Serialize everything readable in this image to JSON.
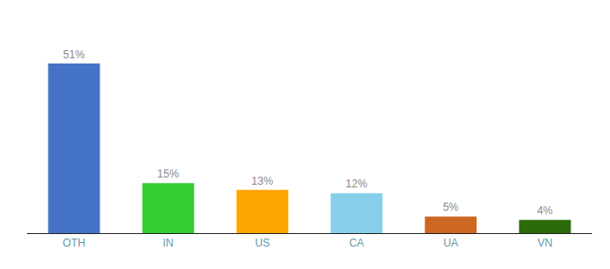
{
  "chart_data": {
    "type": "bar",
    "categories": [
      "OTH",
      "IN",
      "US",
      "CA",
      "UA",
      "VN"
    ],
    "values": [
      51,
      15,
      13,
      12,
      5,
      4
    ],
    "value_labels": [
      "51%",
      "15%",
      "13%",
      "12%",
      "5%",
      "4%"
    ],
    "colors": [
      "#4472C4",
      "#33CC33",
      "#FFA500",
      "#87CEEB",
      "#CC6622",
      "#2D6A0A"
    ],
    "ylim": [
      0,
      62
    ],
    "data_labels": true,
    "tick_labels": "x",
    "grid": false
  }
}
